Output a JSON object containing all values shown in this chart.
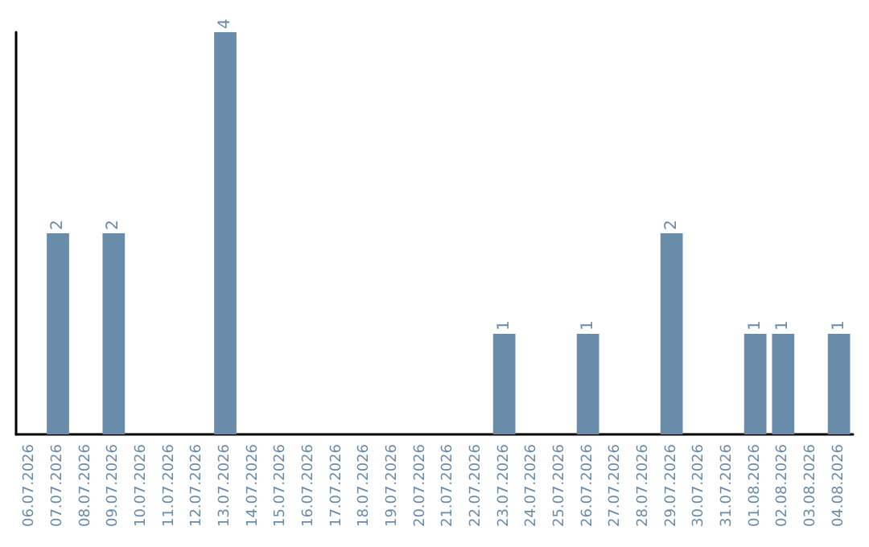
{
  "chart_data": {
    "type": "bar",
    "categories": [
      "06.07.2026",
      "07.07.2026",
      "08.07.2026",
      "09.07.2026",
      "10.07.2026",
      "11.07.2026",
      "12.07.2026",
      "13.07.2026",
      "14.07.2026",
      "15.07.2026",
      "16.07.2026",
      "17.07.2026",
      "18.07.2026",
      "19.07.2026",
      "20.07.2026",
      "21.07.2026",
      "22.07.2026",
      "23.07.2026",
      "24.07.2026",
      "25.07.2026",
      "26.07.2026",
      "27.07.2026",
      "28.07.2026",
      "29.07.2026",
      "30.07.2026",
      "31.07.2026",
      "01.08.2026",
      "02.08.2026",
      "03.08.2026",
      "04.08.2026"
    ],
    "values": [
      0,
      2,
      0,
      2,
      0,
      0,
      0,
      4,
      0,
      0,
      0,
      0,
      0,
      0,
      0,
      0,
      0,
      1,
      0,
      0,
      1,
      0,
      0,
      2,
      0,
      0,
      1,
      1,
      0,
      1
    ],
    "value_labels": [
      null,
      "2",
      null,
      "2",
      null,
      null,
      null,
      "4",
      null,
      null,
      null,
      null,
      null,
      null,
      null,
      null,
      null,
      "1",
      null,
      null,
      "1",
      null,
      null,
      "2",
      null,
      null,
      "1",
      "1",
      null,
      "1"
    ],
    "color": "#6a8cab",
    "grid": false,
    "tick_labels": "x"
  }
}
